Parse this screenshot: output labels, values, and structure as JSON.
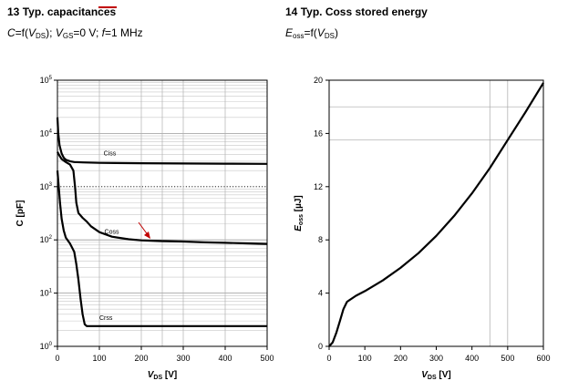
{
  "chart_data": [
    {
      "type": "line",
      "number": "13",
      "title": "Typ. capacitances",
      "subtitle_parts": [
        "C",
        "=f(",
        "V",
        "DS",
        "); ",
        "V",
        "GS",
        "=0 V; ",
        "f",
        "=1 MHz"
      ],
      "xlabel_main": "V",
      "xlabel_sub": "DS",
      "xlabel_unit": " [V]",
      "ylabel": "C [pF]",
      "yscale": "log",
      "xlim": [
        0,
        500
      ],
      "ylim": [
        1,
        100000
      ],
      "x_ticks": [
        "0",
        "100",
        "200",
        "300",
        "400",
        "500"
      ],
      "y_tick_exponents": [
        "0",
        "1",
        "2",
        "3",
        "4",
        "5"
      ],
      "series": [
        {
          "name": "Ciss",
          "label_at": [
            110,
            4200
          ],
          "points": [
            [
              0,
              20000
            ],
            [
              2,
              10000
            ],
            [
              5,
              6000
            ],
            [
              10,
              4200
            ],
            [
              15,
              3500
            ],
            [
              20,
              3200
            ],
            [
              30,
              3000
            ],
            [
              40,
              2900
            ],
            [
              60,
              2850
            ],
            [
              100,
              2800
            ],
            [
              200,
              2750
            ],
            [
              300,
              2720
            ],
            [
              400,
              2700
            ],
            [
              500,
              2680
            ]
          ]
        },
        {
          "name": "Coss",
          "label_at": [
            112,
            140
          ],
          "points": [
            [
              0,
              4500
            ],
            [
              5,
              3800
            ],
            [
              10,
              3300
            ],
            [
              20,
              2900
            ],
            [
              30,
              2600
            ],
            [
              38,
              2000
            ],
            [
              42,
              1000
            ],
            [
              45,
              500
            ],
            [
              50,
              320
            ],
            [
              60,
              260
            ],
            [
              70,
              220
            ],
            [
              80,
              180
            ],
            [
              100,
              140
            ],
            [
              130,
              115
            ],
            [
              170,
              103
            ],
            [
              200,
              98
            ],
            [
              250,
              95
            ],
            [
              300,
              93
            ],
            [
              350,
              90
            ],
            [
              400,
              88
            ],
            [
              450,
              86
            ],
            [
              500,
              84
            ]
          ]
        },
        {
          "name": "Crss",
          "label_at": [
            100,
            3.4
          ],
          "points": [
            [
              0,
              2000
            ],
            [
              3,
              1000
            ],
            [
              6,
              500
            ],
            [
              10,
              250
            ],
            [
              15,
              150
            ],
            [
              20,
              110
            ],
            [
              30,
              85
            ],
            [
              40,
              60
            ],
            [
              45,
              35
            ],
            [
              50,
              18
            ],
            [
              55,
              8
            ],
            [
              60,
              4
            ],
            [
              65,
              2.6
            ],
            [
              70,
              2.4
            ],
            [
              100,
              2.4
            ],
            [
              200,
              2.4
            ],
            [
              300,
              2.4
            ],
            [
              400,
              2.4
            ],
            [
              500,
              2.4
            ]
          ]
        }
      ]
    },
    {
      "type": "line",
      "number": "14",
      "title": "Typ. Coss stored energy",
      "subtitle_parts": [
        "E",
        "oss",
        "=f(",
        "V",
        "DS",
        ")"
      ],
      "xlabel_main": "V",
      "xlabel_sub": "DS",
      "xlabel_unit": " [V]",
      "ylabel_main": "E",
      "ylabel_sub": "oss",
      "ylabel_unit": " [µJ]",
      "xlim": [
        0,
        600
      ],
      "ylim": [
        0,
        20
      ],
      "x_ticks": [
        "0",
        "100",
        "200",
        "300",
        "400",
        "500",
        "600"
      ],
      "y_ticks": [
        "0",
        "4",
        "8",
        "12",
        "16",
        "20"
      ],
      "series": [
        {
          "name": "",
          "points": [
            [
              0,
              0
            ],
            [
              10,
              0.3
            ],
            [
              20,
              1.0
            ],
            [
              30,
              1.9
            ],
            [
              40,
              2.8
            ],
            [
              50,
              3.35
            ],
            [
              75,
              3.8
            ],
            [
              100,
              4.15
            ],
            [
              150,
              4.95
            ],
            [
              200,
              5.9
            ],
            [
              250,
              7.0
            ],
            [
              300,
              8.3
            ],
            [
              350,
              9.8
            ],
            [
              400,
              11.5
            ],
            [
              450,
              13.4
            ],
            [
              500,
              15.5
            ],
            [
              550,
              17.6
            ],
            [
              600,
              19.8
            ]
          ]
        }
      ]
    }
  ]
}
